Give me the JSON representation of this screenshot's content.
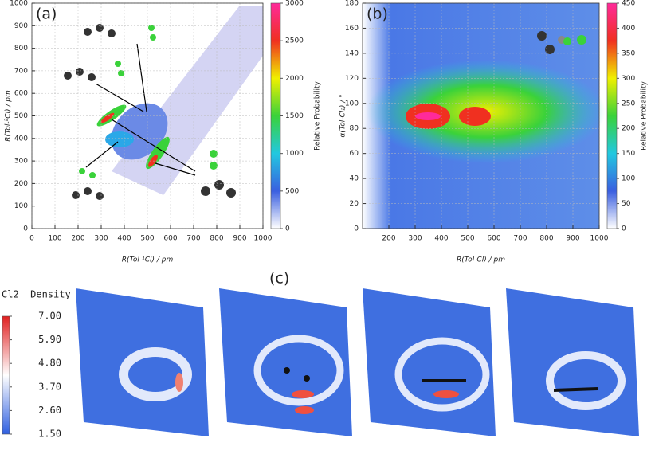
{
  "chart_data": [
    {
      "type": "heatmap",
      "panel_label": "(a)",
      "x_label": "R(Tol-¹Cl) / pm",
      "y_label": "R(Tol-²Cl) / pm",
      "xlim": [
        0,
        1000
      ],
      "xticks": [
        0,
        100,
        200,
        300,
        400,
        500,
        600,
        700,
        800,
        900,
        1000
      ],
      "ylim": [
        0,
        1000
      ],
      "yticks": [
        0,
        100,
        200,
        300,
        400,
        500,
        600,
        700,
        800,
        900,
        1000
      ],
      "grid": true,
      "colorbar_label": "Relative Probability",
      "clim": [
        0,
        3000
      ],
      "cticks": [
        0,
        500,
        1000,
        1500,
        2000,
        2500,
        3000
      ],
      "colormap": [
        "#ffffff",
        "#3a5fe0",
        "#22c8e0",
        "#3ad23a",
        "#f0f000",
        "#f03020",
        "#ff2a9a"
      ]
    },
    {
      "type": "heatmap",
      "panel_label": "(b)",
      "x_label": "R(Tol-Cl) / pm",
      "y_label": "α(Tol-Cl₂) / °",
      "xlim": [
        100,
        1000
      ],
      "xticks": [
        200,
        300,
        400,
        500,
        600,
        700,
        800,
        900,
        1000
      ],
      "ylim": [
        0,
        180
      ],
      "yticks": [
        0,
        20,
        40,
        60,
        80,
        100,
        120,
        140,
        160,
        180
      ],
      "grid": true,
      "colorbar_label": "Relative Probability",
      "clim": [
        0,
        450
      ],
      "cticks": [
        0,
        50,
        100,
        150,
        200,
        250,
        300,
        350,
        400,
        450
      ],
      "colormap": [
        "#ffffff",
        "#3a5fe0",
        "#22c8e0",
        "#3ad23a",
        "#f0f000",
        "#f03020",
        "#ff2a9a"
      ]
    },
    {
      "type": "density-map",
      "panel_label": "(c)",
      "colorbar_label": "Cl2  Density",
      "clim": [
        1.5,
        7
      ],
      "cticks": [
        {
          "value": 1.5,
          "label": "1.50"
        },
        {
          "value": 2.6,
          "label": "2.60"
        },
        {
          "value": 3.7,
          "label": "3.70"
        },
        {
          "value": 4.8,
          "label": "4.80"
        },
        {
          "value": 5.9,
          "label": "5.90"
        },
        {
          "value": 7,
          "label": "7.00"
        }
      ],
      "colormap": [
        "#2f5fe0",
        "#ffffff",
        "#e02020"
      ]
    }
  ]
}
